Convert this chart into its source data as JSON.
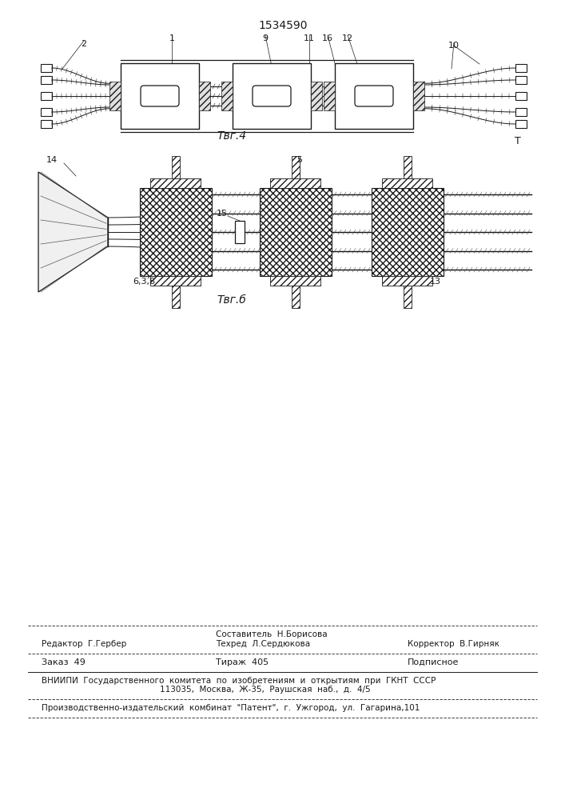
{
  "patent_number": "1534590",
  "fig4_label": "Τвг.4",
  "fig6_label": "Τвг.б",
  "label_T": "T",
  "bg_color": "#ffffff",
  "line_color": "#1a1a1a",
  "footer_editor": "Редактор  Г.Гербер",
  "footer_comp_top": "Составитель  Н.Борисова",
  "footer_tech": "Техред  Л.Сердюкова",
  "footer_corr": "Корректор  В.Гирняк",
  "footer_order": "Заказ  49",
  "footer_circ": "Тираж  405",
  "footer_sub": "Подписное",
  "footer_vniip": "ВНИИПИ  Государственного  комитета  по  изобретениям  и  открытиям  при  ГКНТ  СССР",
  "footer_addr": "113035,  Москва,  Ж-35,  Раушская  наб.,  д.  4/5",
  "footer_plant": "Производственно-издательский  комбинат  \"Патент\",  г.  Ужгород,  ул.  Гагарина,101"
}
